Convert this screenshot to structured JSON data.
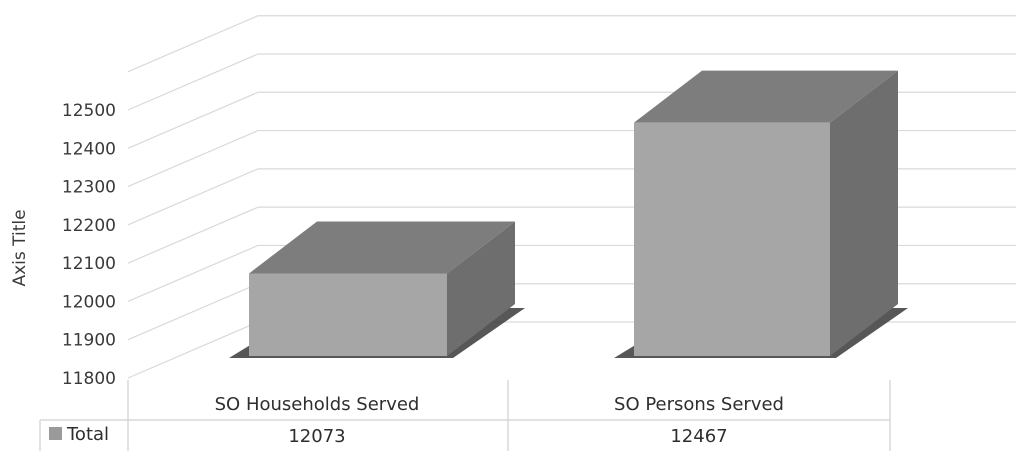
{
  "chart_data": {
    "type": "bar",
    "categories": [
      "SO Households Served",
      "SO Persons Served"
    ],
    "series": [
      {
        "name": "Total",
        "values": [
          12073,
          12467
        ]
      }
    ],
    "ylabel": "Axis Title",
    "ylim": [
      11800,
      12500
    ],
    "yticks": [
      11800,
      11900,
      12000,
      12100,
      12200,
      12300,
      12400,
      12500
    ],
    "grid": true,
    "legend": "data-table",
    "bar_color": "#a6a6a6"
  }
}
